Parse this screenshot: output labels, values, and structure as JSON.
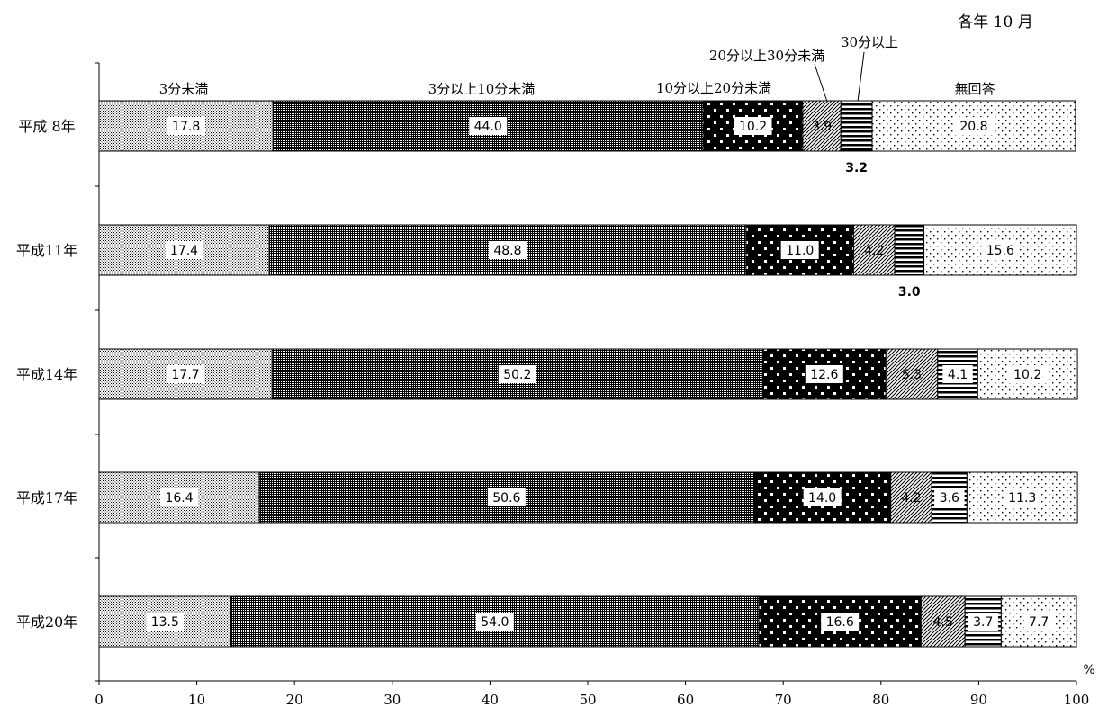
{
  "chart_data": {
    "type": "bar",
    "orientation": "horizontal",
    "stacked": true,
    "note": "各年 10 月",
    "unit": "%",
    "xlim": [
      0,
      100
    ],
    "x_ticks": [
      0,
      10,
      20,
      30,
      40,
      50,
      60,
      70,
      80,
      90,
      100
    ],
    "grid": false,
    "categories": [
      "平成 8年",
      "平成11年",
      "平成14年",
      "平成17年",
      "平成20年"
    ],
    "series": [
      {
        "name": "3分未満",
        "pattern": "fine-dots-light",
        "values": [
          17.8,
          17.4,
          17.7,
          16.4,
          13.5
        ]
      },
      {
        "name": "3分以上10分未満",
        "pattern": "dense-dots-dark",
        "values": [
          44.0,
          48.8,
          50.2,
          50.6,
          54.0
        ]
      },
      {
        "name": "10分以上20分未満",
        "pattern": "white-dots-on-black",
        "values": [
          10.2,
          11.0,
          12.6,
          14.0,
          16.6
        ]
      },
      {
        "name": "20分以上30分未満",
        "pattern": "diagonal-hatch",
        "values": [
          3.9,
          4.2,
          5.3,
          4.2,
          4.5
        ]
      },
      {
        "name": "30分以上",
        "pattern": "horizontal-stripes",
        "values": [
          3.2,
          3.0,
          4.1,
          3.6,
          3.7
        ]
      },
      {
        "name": "無回答",
        "pattern": "sparse-dots",
        "values": [
          20.8,
          15.6,
          10.2,
          11.3,
          7.7
        ]
      }
    ],
    "outside_value_labels": [
      {
        "category_index": 0,
        "series_index": 4
      },
      {
        "category_index": 1,
        "series_index": 4
      }
    ],
    "colors": {
      "ink": "#000000",
      "background": "#ffffff",
      "label_box": "#ffffff"
    }
  }
}
